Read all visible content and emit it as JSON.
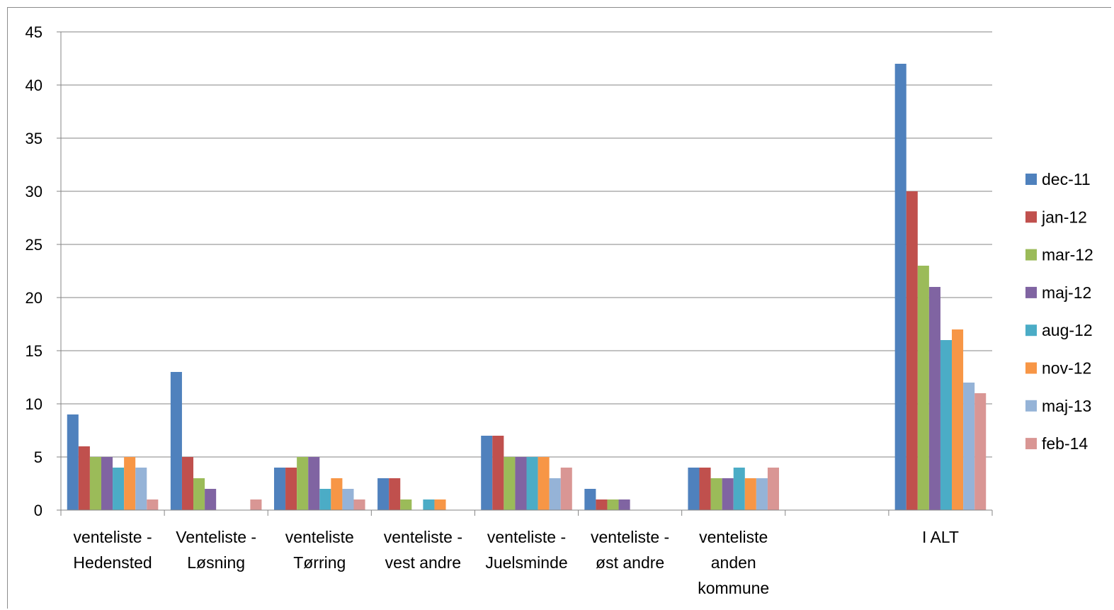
{
  "chart_data": {
    "type": "bar",
    "categories": [
      [
        "venteliste -",
        "Hedensted"
      ],
      [
        "Venteliste -",
        "Løsning"
      ],
      [
        "venteliste",
        "Tørring"
      ],
      [
        "venteliste -",
        "vest andre"
      ],
      [
        "venteliste -",
        "Juelsminde"
      ],
      [
        "venteliste -",
        "øst andre"
      ],
      [
        "venteliste",
        "anden",
        "kommune"
      ],
      [],
      [
        "I ALT"
      ]
    ],
    "series": [
      {
        "name": "dec-11",
        "color": "#4F81BD",
        "values": [
          9,
          13,
          4,
          3,
          7,
          2,
          4,
          0,
          42
        ]
      },
      {
        "name": "jan-12",
        "color": "#C0504D",
        "values": [
          6,
          5,
          4,
          3,
          7,
          1,
          4,
          0,
          30
        ]
      },
      {
        "name": "mar-12",
        "color": "#9BBB59",
        "values": [
          5,
          3,
          5,
          1,
          5,
          1,
          3,
          0,
          23
        ]
      },
      {
        "name": "maj-12",
        "color": "#8064A2",
        "values": [
          5,
          2,
          5,
          0,
          5,
          1,
          3,
          0,
          21
        ]
      },
      {
        "name": "aug-12",
        "color": "#4BACC6",
        "values": [
          4,
          0,
          2,
          1,
          5,
          0,
          4,
          0,
          16
        ]
      },
      {
        "name": "nov-12",
        "color": "#F79646",
        "values": [
          5,
          0,
          3,
          1,
          5,
          0,
          3,
          0,
          17
        ]
      },
      {
        "name": "maj-13",
        "color": "#95B3D7",
        "values": [
          4,
          0,
          2,
          0,
          3,
          0,
          3,
          0,
          12
        ]
      },
      {
        "name": "feb-14",
        "color": "#D99694",
        "values": [
          1,
          1,
          1,
          0,
          4,
          0,
          4,
          0,
          11
        ]
      }
    ],
    "ylim": [
      0,
      45
    ],
    "yticks": [
      0,
      5,
      10,
      15,
      20,
      25,
      30,
      35,
      40,
      45
    ],
    "grid": true,
    "legend_position": "right",
    "title": "",
    "xlabel": "",
    "ylabel": ""
  }
}
